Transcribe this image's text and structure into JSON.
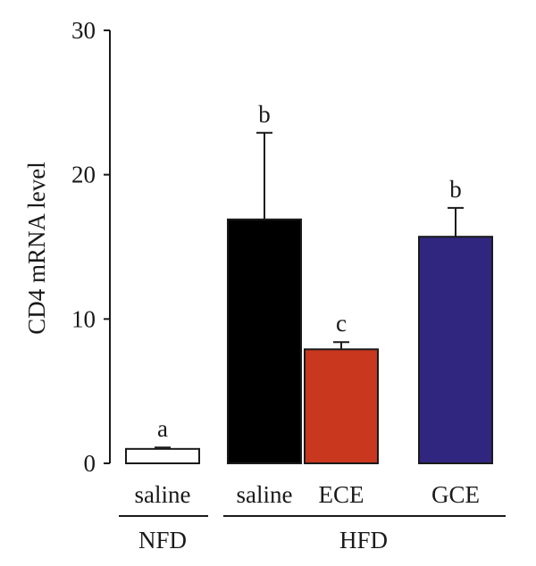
{
  "chart_data": {
    "type": "bar",
    "title": "",
    "xlabel": "",
    "ylabel": "CD4 mRNA level",
    "ylim": [
      0,
      30
    ],
    "yticks": [
      0,
      10,
      20,
      30
    ],
    "grid": false,
    "categories": [
      "saline",
      "saline",
      "ECE",
      "GCE"
    ],
    "groups": [
      {
        "label": "NFD",
        "members": [
          0
        ]
      },
      {
        "label": "HFD",
        "members": [
          1,
          2,
          3
        ]
      }
    ],
    "values": [
      1.0,
      16.9,
      7.9,
      15.7
    ],
    "errors": [
      0.1,
      6.0,
      0.5,
      2.0
    ],
    "significance": [
      "a",
      "b",
      "c",
      "b"
    ],
    "colors": [
      "#ffffff",
      "#000000",
      "#c8371e",
      "#31267f"
    ]
  }
}
